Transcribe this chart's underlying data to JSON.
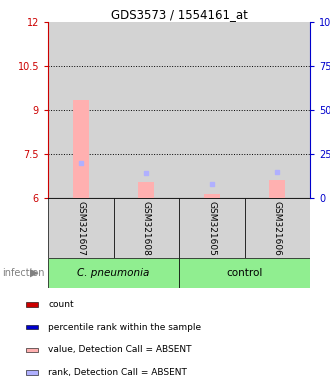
{
  "title": "GDS3573 / 1554161_at",
  "samples": [
    "GSM321607",
    "GSM321608",
    "GSM321605",
    "GSM321606"
  ],
  "groups": [
    "C. pneumonia",
    "C. pneumonia",
    "control",
    "control"
  ],
  "ylim_left": [
    6,
    12
  ],
  "ylim_right": [
    0,
    100
  ],
  "yticks_left": [
    6,
    7.5,
    9,
    10.5,
    12
  ],
  "yticks_right": [
    0,
    25,
    50,
    75,
    100
  ],
  "ytick_labels_left": [
    "6",
    "7.5",
    "9",
    "10.5",
    "12"
  ],
  "ytick_labels_right": [
    "0",
    "25",
    "50",
    "75",
    "100%"
  ],
  "left_axis_color": "#cc0000",
  "right_axis_color": "#0000cc",
  "bar_values": [
    9.35,
    6.55,
    6.12,
    6.62
  ],
  "bar_base": 6.0,
  "bar_color_absent": "#ffb0b0",
  "rank_values": [
    20.0,
    14.0,
    8.0,
    15.0
  ],
  "rank_color_absent": "#b0b0ff",
  "bar_width": 0.25,
  "dotted_lines": [
    7.5,
    9.0,
    10.5
  ],
  "legend_items": [
    {
      "label": "count",
      "color": "#cc0000"
    },
    {
      "label": "percentile rank within the sample",
      "color": "#0000cc"
    },
    {
      "label": "value, Detection Call = ABSENT",
      "color": "#ffb0b0"
    },
    {
      "label": "rank, Detection Call = ABSENT",
      "color": "#b0b0ff"
    }
  ],
  "infection_label": "infection",
  "figsize": [
    3.3,
    3.84
  ],
  "dpi": 100,
  "background_color": "#ffffff",
  "plot_bg_color": "#ffffff",
  "sample_bg_color": "#d3d3d3",
  "group_pneumonia_color": "#90ee90",
  "group_control_color": "#90ee90"
}
